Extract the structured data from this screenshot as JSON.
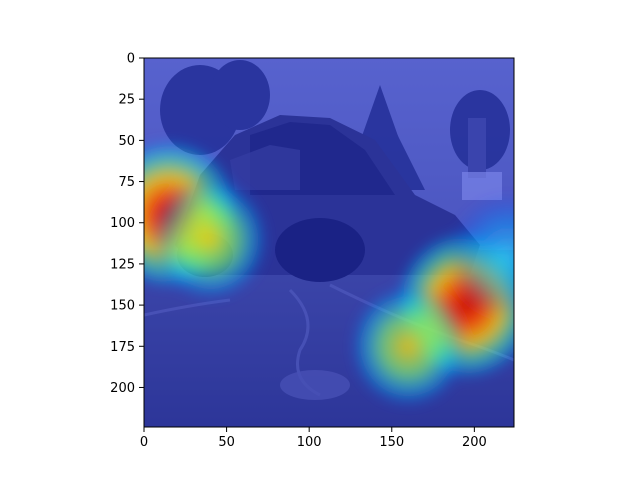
{
  "chart_data": {
    "type": "heatmap",
    "title": "",
    "xlabel": "",
    "ylabel": "",
    "xlim": [
      0,
      224
    ],
    "ylim": [
      224,
      0
    ],
    "x_ticks": [
      0,
      50,
      100,
      150,
      200
    ],
    "y_ticks": [
      0,
      25,
      50,
      75,
      100,
      125,
      150,
      175,
      200
    ],
    "colormap": "jet",
    "overlay_on_image": true,
    "underlying_image": "burned-out car wreck on cracked pavement",
    "hotspots": [
      {
        "x": 15,
        "y": 95,
        "intensity": 1.0
      },
      {
        "x": 40,
        "y": 110,
        "intensity": 0.55
      },
      {
        "x": 195,
        "y": 150,
        "intensity": 1.0
      },
      {
        "x": 160,
        "y": 175,
        "intensity": 0.55
      },
      {
        "x": 220,
        "y": 120,
        "intensity": 0.5
      }
    ],
    "grid": false,
    "legend": "none"
  }
}
